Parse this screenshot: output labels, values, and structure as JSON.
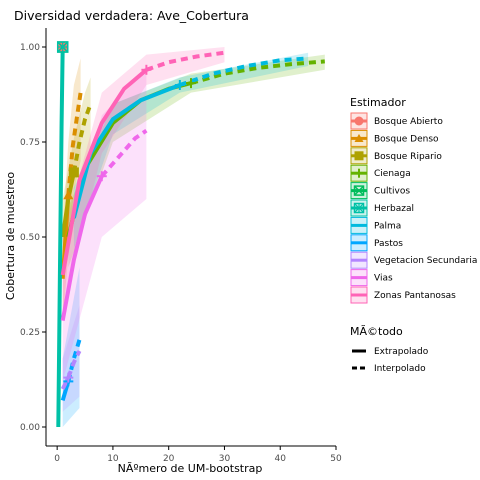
{
  "chart_data": {
    "type": "line",
    "title": "Diversidad verdadera: Ave_Cobertura",
    "xlabel": "NÃºmero de UM-bootstrap",
    "ylabel": "Cobertura de muestreo",
    "xlim": [
      -2,
      50
    ],
    "ylim": [
      -0.05,
      1.05
    ],
    "x_ticks": [
      0,
      10,
      20,
      30,
      40,
      50
    ],
    "y_ticks": [
      0.0,
      0.25,
      0.5,
      0.75,
      1.0
    ],
    "x_tick_labels": [
      "0",
      "10",
      "20",
      "30",
      "40",
      "50"
    ],
    "y_tick_labels": [
      "0.00",
      "0.25",
      "0.50",
      "0.75",
      "1.00"
    ],
    "grid": false,
    "legend_position": "right",
    "legend": {
      "estimator_title": "Estimador",
      "method_title": "MÃ©todo",
      "methods": [
        "Extrapolado",
        "Interpolado"
      ]
    },
    "series": [
      {
        "name": "Bosque Abierto",
        "color": "#F8766D",
        "marker": "circle",
        "observed": [
          1,
          1.0
        ],
        "interpolated": [
          [
            1,
            1.0
          ]
        ],
        "extrapolated": [
          [
            1,
            1.0
          ],
          [
            2,
            1.0
          ]
        ],
        "band": [
          [
            1,
            1.0,
            1.0
          ],
          [
            2,
            1.0,
            1.0
          ]
        ]
      },
      {
        "name": "Bosque Denso",
        "color": "#DB8E00",
        "marker": "triangle",
        "observed": [
          2,
          0.61
        ],
        "interpolated": [
          [
            1,
            0.39
          ],
          [
            2,
            0.61
          ]
        ],
        "extrapolated": [
          [
            2,
            0.61
          ],
          [
            2.8,
            0.74
          ],
          [
            3.6,
            0.82
          ],
          [
            4.2,
            0.88
          ]
        ],
        "band": [
          [
            1,
            0.28,
            0.5
          ],
          [
            2,
            0.45,
            0.75
          ],
          [
            3,
            0.62,
            0.9
          ],
          [
            4.2,
            0.7,
            0.97
          ]
        ]
      },
      {
        "name": "Bosque Ripario",
        "color": "#AEA200",
        "marker": "square",
        "observed": [
          3,
          0.67
        ],
        "interpolated": [
          [
            1,
            0.5
          ],
          [
            2,
            0.6
          ],
          [
            3,
            0.67
          ]
        ],
        "extrapolated": [
          [
            3,
            0.67
          ],
          [
            4,
            0.75
          ],
          [
            5,
            0.81
          ],
          [
            6,
            0.85
          ]
        ],
        "band": [
          [
            1,
            0.4,
            0.6
          ],
          [
            3,
            0.58,
            0.76
          ],
          [
            5,
            0.68,
            0.88
          ],
          [
            6,
            0.72,
            0.92
          ]
        ]
      },
      {
        "name": "Cienaga",
        "color": "#64B200",
        "marker": "plus",
        "observed": [
          24,
          0.905
        ],
        "interpolated": [
          [
            2,
            0.5
          ],
          [
            5,
            0.68
          ],
          [
            10,
            0.8
          ],
          [
            15,
            0.86
          ],
          [
            20,
            0.89
          ],
          [
            24,
            0.905
          ]
        ],
        "extrapolated": [
          [
            24,
            0.905
          ],
          [
            30,
            0.93
          ],
          [
            36,
            0.945
          ],
          [
            42,
            0.955
          ],
          [
            48,
            0.962
          ]
        ],
        "band": [
          [
            2,
            0.42,
            0.58
          ],
          [
            10,
            0.75,
            0.85
          ],
          [
            24,
            0.88,
            0.93
          ],
          [
            48,
            0.94,
            0.98
          ]
        ]
      },
      {
        "name": "Cultivos",
        "color": "#00BD5C",
        "marker": "box-x",
        "observed": [
          1,
          1.0
        ],
        "interpolated": [
          [
            1,
            1.0
          ]
        ],
        "extrapolated": [
          [
            1,
            1.0
          ],
          [
            2,
            1.0
          ]
        ],
        "band": [
          [
            1,
            1.0,
            1.0
          ],
          [
            2,
            1.0,
            1.0
          ]
        ]
      },
      {
        "name": "Herbazal",
        "color": "#00C1A7",
        "marker": "asterisk-box",
        "observed": [
          1,
          1.0
        ],
        "interpolated": [
          [
            0.2,
            0.0
          ],
          [
            0.5,
            0.4
          ],
          [
            0.8,
            0.8
          ],
          [
            1,
            1.0
          ]
        ],
        "extrapolated": [
          [
            1,
            1.0
          ],
          [
            2,
            1.0
          ]
        ],
        "band": [
          [
            0.2,
            0.0,
            0.0
          ],
          [
            1,
            1.0,
            1.0
          ]
        ]
      },
      {
        "name": "Palma",
        "color": "#00BADE",
        "marker": "minus",
        "observed": [
          22,
          0.9
        ],
        "interpolated": [
          [
            3,
            0.55
          ],
          [
            6,
            0.72
          ],
          [
            10,
            0.81
          ],
          [
            15,
            0.86
          ],
          [
            22,
            0.9
          ]
        ],
        "extrapolated": [
          [
            22,
            0.9
          ],
          [
            28,
            0.93
          ],
          [
            34,
            0.95
          ],
          [
            40,
            0.965
          ],
          [
            45,
            0.97
          ]
        ],
        "band": [
          [
            3,
            0.47,
            0.63
          ],
          [
            10,
            0.77,
            0.85
          ],
          [
            22,
            0.88,
            0.92
          ],
          [
            45,
            0.95,
            0.985
          ]
        ]
      },
      {
        "name": "Pastos",
        "color": "#00A6FF",
        "marker": "minus",
        "observed": [
          2,
          0.12
        ],
        "interpolated": [
          [
            1,
            0.07
          ],
          [
            2,
            0.12
          ]
        ],
        "extrapolated": [
          [
            2,
            0.12
          ],
          [
            3,
            0.18
          ],
          [
            4,
            0.23
          ]
        ],
        "band": [
          [
            1,
            0.0,
            0.18
          ],
          [
            4,
            0.05,
            0.42
          ]
        ]
      },
      {
        "name": "Vegetacion Secundaria",
        "color": "#B385FF",
        "marker": "minus",
        "observed": [
          2,
          0.13
        ],
        "interpolated": [
          [
            1,
            0.1
          ],
          [
            2,
            0.13
          ]
        ],
        "extrapolated": [
          [
            2,
            0.13
          ],
          [
            3,
            0.17
          ],
          [
            4,
            0.2
          ]
        ],
        "band": [
          [
            1,
            0.04,
            0.18
          ],
          [
            4,
            0.08,
            0.32
          ]
        ]
      },
      {
        "name": "Vias",
        "color": "#EF67EB",
        "marker": "minus",
        "observed": [
          8,
          0.66
        ],
        "interpolated": [
          [
            1,
            0.28
          ],
          [
            3,
            0.44
          ],
          [
            5,
            0.56
          ],
          [
            8,
            0.66
          ]
        ],
        "extrapolated": [
          [
            8,
            0.66
          ],
          [
            11,
            0.71
          ],
          [
            14,
            0.76
          ],
          [
            16,
            0.78
          ]
        ],
        "band": [
          [
            1,
            0.12,
            0.42
          ],
          [
            8,
            0.5,
            0.82
          ],
          [
            16,
            0.6,
            0.94
          ]
        ]
      },
      {
        "name": "Zonas Pantanosas",
        "color": "#FF63B6",
        "marker": "minus",
        "observed": [
          16,
          0.94
        ],
        "interpolated": [
          [
            1,
            0.4
          ],
          [
            4,
            0.65
          ],
          [
            8,
            0.8
          ],
          [
            12,
            0.89
          ],
          [
            16,
            0.94
          ]
        ],
        "extrapolated": [
          [
            16,
            0.94
          ],
          [
            20,
            0.96
          ],
          [
            25,
            0.975
          ],
          [
            30,
            0.985
          ]
        ],
        "band": [
          [
            1,
            0.3,
            0.5
          ],
          [
            8,
            0.72,
            0.88
          ],
          [
            16,
            0.9,
            0.98
          ],
          [
            30,
            0.96,
            1.0
          ]
        ]
      }
    ]
  }
}
